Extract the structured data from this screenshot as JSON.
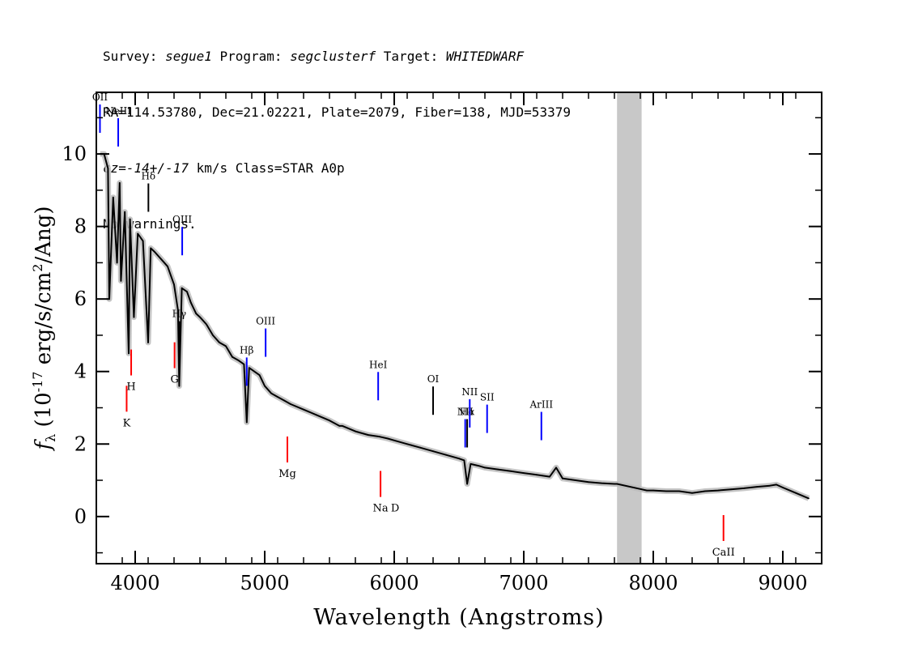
{
  "header": {
    "line1": {
      "survey_label": "Survey: ",
      "survey": "segue1",
      "program_label": " Program: ",
      "program": "segclusterf",
      "target_label": " Target: ",
      "target": "WHITEDWARF"
    },
    "line2": "RA=114.53780, Dec=21.02221, Plate=2079, Fiber=138, MJD=53379",
    "line3": {
      "cz": "cz=-14+/-17",
      "rest": " km/s Class=STAR A0p"
    },
    "line4": "No warnings."
  },
  "chart_data": {
    "type": "line",
    "title": "",
    "xlabel": "Wavelength (Angstroms)",
    "ylabel": "f_λ (10^-17 erg/s/cm^2/Ang)",
    "xlim": [
      3700,
      9300
    ],
    "ylim": [
      -1.3,
      11.7
    ],
    "xticks": [
      4000,
      5000,
      6000,
      7000,
      8000,
      9000
    ],
    "yticks": [
      0,
      2,
      4,
      6,
      8,
      10
    ],
    "grid": false,
    "masked_region": [
      7720,
      7910
    ],
    "colors": {
      "model": "#000000",
      "error_band": "#bbbbbb",
      "mask": "#c8c8c8",
      "emission_line": "#0000ff",
      "absorption_line": "#ff0000",
      "balmer_line": "#000000"
    },
    "series": [
      {
        "name": "",
        "x": [
          3730,
          3760,
          3790,
          3800,
          3830,
          3860,
          3880,
          3890,
          3920,
          3950,
          3960,
          3990,
          4020,
          4060,
          4100,
          4120,
          4150,
          4200,
          4250,
          4300,
          4330,
          4340,
          4360,
          4400,
          4430,
          4470,
          4500,
          4550,
          4600,
          4650,
          4700,
          4750,
          4800,
          4840,
          4861,
          4880,
          4920,
          4960,
          5000,
          5050,
          5100,
          5150,
          5200,
          5300,
          5400,
          5500,
          5577,
          5600,
          5700,
          5800,
          5890,
          5950,
          6000,
          6100,
          6200,
          6300,
          6400,
          6500,
          6540,
          6563,
          6590,
          6650,
          6700,
          6800,
          6900,
          7000,
          7100,
          7200,
          7250,
          7300,
          7400,
          7500,
          7600,
          7700,
          7720,
          7910,
          7950,
          8000,
          8100,
          8200,
          8300,
          8400,
          8500,
          8600,
          8700,
          8800,
          8900,
          8950,
          9000,
          9100,
          9200
        ],
        "y": [
          10.0,
          10.0,
          9.6,
          6.0,
          8.8,
          7.0,
          9.2,
          6.5,
          8.4,
          4.5,
          8.2,
          5.5,
          7.8,
          7.6,
          4.8,
          7.4,
          7.3,
          7.1,
          6.9,
          6.4,
          5.7,
          3.6,
          6.3,
          6.2,
          5.9,
          5.6,
          5.5,
          5.3,
          5.0,
          4.8,
          4.7,
          4.4,
          4.3,
          4.2,
          2.6,
          4.1,
          4.0,
          3.9,
          3.6,
          3.4,
          3.3,
          3.2,
          3.1,
          2.95,
          2.8,
          2.65,
          2.5,
          2.5,
          2.35,
          2.25,
          2.2,
          2.15,
          2.1,
          2.0,
          1.9,
          1.8,
          1.7,
          1.6,
          1.55,
          0.9,
          1.45,
          1.4,
          1.35,
          1.3,
          1.25,
          1.2,
          1.15,
          1.1,
          1.35,
          1.05,
          1.0,
          0.95,
          0.92,
          0.9,
          0.9,
          0.75,
          0.72,
          0.72,
          0.7,
          0.7,
          0.65,
          0.7,
          0.72,
          0.75,
          0.78,
          0.82,
          0.85,
          0.88,
          0.8,
          0.65,
          0.5
        ]
      }
    ],
    "line_labels": [
      {
        "label": "OII",
        "wavelength": 3728,
        "kind": "emission",
        "side": "top"
      },
      {
        "label": "NeIII",
        "wavelength": 3869,
        "kind": "emission",
        "side": "top"
      },
      {
        "label": "Hδ",
        "wavelength": 4102,
        "kind": "balmer",
        "side": "top"
      },
      {
        "label": "Hγ",
        "wavelength": 4340,
        "kind": "balmer",
        "side": "top"
      },
      {
        "label": "OIII",
        "wavelength": 4363,
        "kind": "emission",
        "side": "top"
      },
      {
        "label": "Hβ",
        "wavelength": 4861,
        "kind": "emission",
        "side": "top"
      },
      {
        "label": "OIII",
        "wavelength": 5007,
        "kind": "emission",
        "side": "top"
      },
      {
        "label": "HeI",
        "wavelength": 5876,
        "kind": "emission",
        "side": "top"
      },
      {
        "label": "OI",
        "wavelength": 6300,
        "kind": "balmer",
        "side": "top"
      },
      {
        "label": "NII",
        "wavelength": 6548,
        "kind": "emission",
        "side": "top"
      },
      {
        "label": "Hα",
        "wavelength": 6563,
        "kind": "balmer",
        "side": "top"
      },
      {
        "label": "NII",
        "wavelength": 6583,
        "kind": "emission",
        "side": "top"
      },
      {
        "label": "SII",
        "wavelength": 6717,
        "kind": "emission",
        "side": "top"
      },
      {
        "label": "ArIII",
        "wavelength": 7136,
        "kind": "emission",
        "side": "top"
      },
      {
        "label": "K",
        "wavelength": 3934,
        "kind": "absorption",
        "side": "bottom"
      },
      {
        "label": "H",
        "wavelength": 3969,
        "kind": "absorption",
        "side": "bottom"
      },
      {
        "label": "G",
        "wavelength": 4304,
        "kind": "absorption",
        "side": "bottom"
      },
      {
        "label": "Mg",
        "wavelength": 5175,
        "kind": "absorption",
        "side": "bottom"
      },
      {
        "label": "Na",
        "wavelength": 5894,
        "kind": "absorption",
        "side": "bottom"
      },
      {
        "label": "D",
        "wavelength": 5894,
        "kind": "absorption",
        "side": "bottom"
      },
      {
        "label": "CaII",
        "wavelength": 8542,
        "kind": "absorption",
        "side": "bottom"
      }
    ]
  }
}
